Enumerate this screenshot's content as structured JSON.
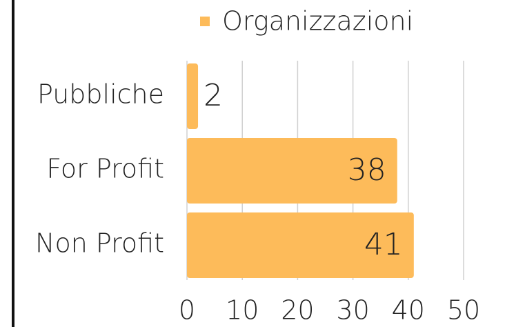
{
  "chart_data": {
    "type": "bar",
    "orientation": "horizontal",
    "categories": [
      "Pubbliche",
      "For Profit",
      "Non Profit"
    ],
    "series": [
      {
        "name": "Organizzazioni",
        "color": "#fdbb5a",
        "values": [
          2,
          38,
          41
        ]
      }
    ],
    "xlim": [
      0,
      50
    ],
    "xticks": [
      0,
      10,
      20,
      30,
      40,
      50
    ],
    "grid": true,
    "legend": "top"
  }
}
